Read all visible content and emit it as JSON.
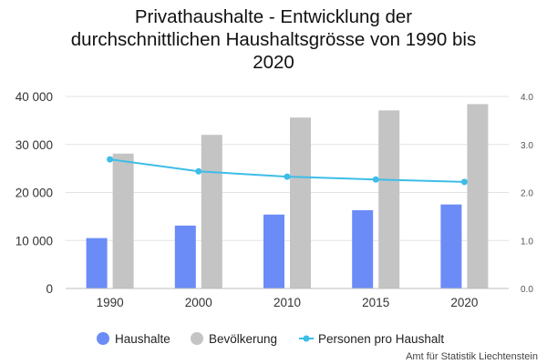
{
  "chart_data": {
    "type": "bar",
    "title_lines": [
      "Privathaushalte - Entwicklung der",
      "durchschnittlichen Haushaltsgrösse von 1990 bis",
      "2020"
    ],
    "categories": [
      "1990",
      "2000",
      "2010",
      "2015",
      "2020"
    ],
    "series": [
      {
        "name": "Haushalte",
        "kind": "bar",
        "axis": "left",
        "color": "#6B8CF7",
        "values": [
          10500,
          13100,
          15400,
          16300,
          17500
        ]
      },
      {
        "name": "Bevölkerung",
        "kind": "bar",
        "axis": "left",
        "color": "#C4C4C4",
        "values": [
          28100,
          32000,
          35600,
          37100,
          38400
        ]
      },
      {
        "name": "Personen pro Haushalt",
        "kind": "line",
        "axis": "right",
        "color": "#3DBDE8",
        "values": [
          2.69,
          2.44,
          2.33,
          2.27,
          2.22
        ]
      }
    ],
    "y_left": {
      "range": [
        0,
        40000
      ],
      "ticks": [
        "0",
        "10 000",
        "20 000",
        "30 000",
        "40 000"
      ]
    },
    "y_right": {
      "range": [
        0,
        4
      ],
      "ticks": [
        "0.0",
        "1.0",
        "2.0",
        "3.0",
        "4.0"
      ]
    },
    "grid": true,
    "legend_position": "bottom"
  },
  "source": "Amt für Statistik Liechtenstein"
}
